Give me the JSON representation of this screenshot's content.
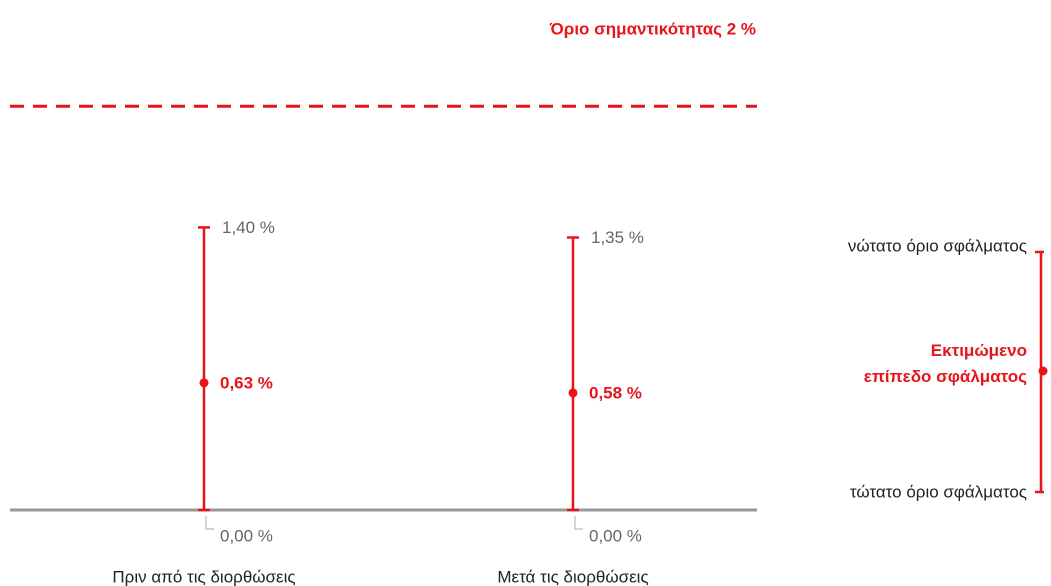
{
  "chart_data": {
    "type": "errorbar",
    "categories": [
      "Πριν από τις διορθώσεις",
      "Μετά τις διορθώσεις"
    ],
    "series": [
      {
        "name": "Εκτιμώμενο επίπεδο σφάλματος",
        "color": "#e8141b",
        "values": [
          0.63,
          0.58
        ],
        "value_labels": [
          "0,63 %",
          "0,58 %"
        ],
        "upper": [
          1.4,
          1.35
        ],
        "upper_labels": [
          "1,40 %",
          "1,35 %"
        ],
        "lower": [
          0,
          0
        ],
        "lower_labels": [
          "0,00 %",
          "0,00 %"
        ]
      }
    ],
    "threshold": {
      "value": 2,
      "label": "Όριο σημαντικότητας 2 %"
    },
    "legend": {
      "upper": "νώτατο όριο σφάλματος",
      "lower": "τώτατο όριο σφάλματος"
    },
    "ylim": [
      0,
      2.16
    ]
  }
}
